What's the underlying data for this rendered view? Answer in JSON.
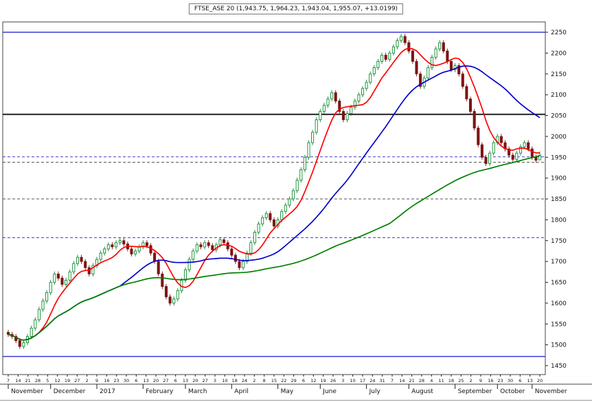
{
  "header": {
    "title": "FTSE_ASE 20 (1,943.75, 1,964.23, 1,943.04, 1,955.07, +13.0199)"
  },
  "chart_data": {
    "type": "candlestick",
    "title": "FTSE_ASE 20",
    "last_quote": {
      "open": 1943.75,
      "high": 1964.23,
      "low": 1943.04,
      "close": 1955.07,
      "change": 13.0199
    },
    "ylim": [
      1430,
      2278
    ],
    "grid": "off",
    "legend": "none",
    "y_ticks": [
      2250,
      2200,
      2150,
      2100,
      2050,
      2000,
      1950,
      1900,
      1850,
      1800,
      1750,
      1700,
      1650,
      1600,
      1550,
      1500,
      1450
    ],
    "colors": {
      "up": "#0e8a2f",
      "up_fill": "#ffffff",
      "down": "#7e1414",
      "axis": "#222222"
    },
    "moving_averages": [
      {
        "name": "fast",
        "color": "#ff0000",
        "window": 8
      },
      {
        "name": "medium",
        "color": "#0000cc",
        "window": 30
      },
      {
        "name": "slow",
        "color": "#008000",
        "window": 100
      }
    ],
    "level_lines": [
      {
        "price": 2250,
        "style": "solid",
        "color": "#3a3ad6",
        "width": 1.4
      },
      {
        "price": 2053,
        "style": "solid",
        "color": "#111111",
        "width": 1.8
      },
      {
        "price": 1951,
        "style": "dashed",
        "color": "#4444cc",
        "width": 1
      },
      {
        "price": 1938,
        "style": "dashed",
        "color": "#555555",
        "width": 1
      },
      {
        "price": 1850,
        "style": "dashed",
        "color": "#555555",
        "width": 1
      },
      {
        "price": 1757,
        "style": "dashed",
        "color": "#4444cc",
        "width": 1
      },
      {
        "price": 1472,
        "style": "solid",
        "color": "#3a3ad6",
        "width": 1.4
      }
    ],
    "candles": [
      [
        1530,
        1536,
        1519,
        1525
      ],
      [
        1525,
        1531,
        1514,
        1520
      ],
      [
        1520,
        1526,
        1504,
        1510
      ],
      [
        1510,
        1516,
        1490,
        1496
      ],
      [
        1496,
        1511,
        1490,
        1505
      ],
      [
        1505,
        1526,
        1499,
        1520
      ],
      [
        1520,
        1546,
        1514,
        1540
      ],
      [
        1540,
        1566,
        1534,
        1560
      ],
      [
        1560,
        1591,
        1554,
        1585
      ],
      [
        1585,
        1611,
        1579,
        1605
      ],
      [
        1605,
        1631,
        1599,
        1625
      ],
      [
        1625,
        1656,
        1619,
        1650
      ],
      [
        1650,
        1676,
        1644,
        1670
      ],
      [
        1670,
        1676,
        1654,
        1660
      ],
      [
        1660,
        1666,
        1639,
        1645
      ],
      [
        1645,
        1661,
        1639,
        1655
      ],
      [
        1655,
        1681,
        1649,
        1675
      ],
      [
        1675,
        1701,
        1669,
        1695
      ],
      [
        1695,
        1716,
        1689,
        1710
      ],
      [
        1710,
        1716,
        1694,
        1700
      ],
      [
        1700,
        1706,
        1679,
        1685
      ],
      [
        1685,
        1691,
        1664,
        1670
      ],
      [
        1670,
        1696,
        1664,
        1690
      ],
      [
        1690,
        1711,
        1684,
        1705
      ],
      [
        1705,
        1726,
        1699,
        1720
      ],
      [
        1720,
        1736,
        1714,
        1730
      ],
      [
        1730,
        1746,
        1724,
        1740
      ],
      [
        1740,
        1746,
        1729,
        1735
      ],
      [
        1735,
        1751,
        1729,
        1745
      ],
      [
        1745,
        1756,
        1739,
        1750
      ],
      [
        1750,
        1756,
        1736,
        1742
      ],
      [
        1742,
        1748,
        1724,
        1730
      ],
      [
        1730,
        1736,
        1712,
        1718
      ],
      [
        1718,
        1731,
        1712,
        1725
      ],
      [
        1725,
        1741,
        1719,
        1735
      ],
      [
        1735,
        1751,
        1729,
        1745
      ],
      [
        1745,
        1751,
        1732,
        1738
      ],
      [
        1738,
        1744,
        1714,
        1720
      ],
      [
        1720,
        1726,
        1694,
        1700
      ],
      [
        1700,
        1706,
        1664,
        1670
      ],
      [
        1670,
        1676,
        1634,
        1640
      ],
      [
        1640,
        1646,
        1609,
        1615
      ],
      [
        1615,
        1621,
        1594,
        1600
      ],
      [
        1600,
        1616,
        1594,
        1610
      ],
      [
        1610,
        1636,
        1604,
        1630
      ],
      [
        1630,
        1661,
        1624,
        1655
      ],
      [
        1655,
        1686,
        1649,
        1680
      ],
      [
        1680,
        1711,
        1674,
        1705
      ],
      [
        1705,
        1731,
        1699,
        1725
      ],
      [
        1725,
        1746,
        1719,
        1740
      ],
      [
        1740,
        1746,
        1729,
        1735
      ],
      [
        1735,
        1751,
        1729,
        1745
      ],
      [
        1745,
        1751,
        1732,
        1738
      ],
      [
        1738,
        1744,
        1722,
        1728
      ],
      [
        1728,
        1746,
        1722,
        1740
      ],
      [
        1740,
        1758,
        1734,
        1752
      ],
      [
        1752,
        1758,
        1739,
        1745
      ],
      [
        1745,
        1751,
        1724,
        1730
      ],
      [
        1730,
        1736,
        1709,
        1715
      ],
      [
        1715,
        1721,
        1694,
        1700
      ],
      [
        1700,
        1706,
        1679,
        1685
      ],
      [
        1685,
        1706,
        1679,
        1700
      ],
      [
        1700,
        1726,
        1694,
        1720
      ],
      [
        1720,
        1751,
        1714,
        1745
      ],
      [
        1745,
        1776,
        1739,
        1770
      ],
      [
        1770,
        1796,
        1764,
        1790
      ],
      [
        1790,
        1811,
        1784,
        1805
      ],
      [
        1805,
        1821,
        1799,
        1815
      ],
      [
        1815,
        1821,
        1794,
        1800
      ],
      [
        1800,
        1806,
        1779,
        1785
      ],
      [
        1785,
        1806,
        1779,
        1800
      ],
      [
        1800,
        1826,
        1794,
        1820
      ],
      [
        1820,
        1841,
        1814,
        1835
      ],
      [
        1835,
        1856,
        1829,
        1850
      ],
      [
        1850,
        1876,
        1844,
        1870
      ],
      [
        1870,
        1901,
        1864,
        1895
      ],
      [
        1895,
        1926,
        1889,
        1920
      ],
      [
        1920,
        1956,
        1914,
        1950
      ],
      [
        1950,
        1991,
        1944,
        1985
      ],
      [
        1985,
        2016,
        1979,
        2010
      ],
      [
        2010,
        2046,
        2004,
        2040
      ],
      [
        2040,
        2066,
        2034,
        2060
      ],
      [
        2060,
        2081,
        2054,
        2075
      ],
      [
        2075,
        2096,
        2069,
        2090
      ],
      [
        2090,
        2111,
        2084,
        2105
      ],
      [
        2105,
        2111,
        2079,
        2085
      ],
      [
        2085,
        2091,
        2054,
        2060
      ],
      [
        2060,
        2066,
        2034,
        2040
      ],
      [
        2040,
        2061,
        2034,
        2055
      ],
      [
        2055,
        2076,
        2049,
        2070
      ],
      [
        2070,
        2091,
        2064,
        2085
      ],
      [
        2085,
        2106,
        2079,
        2100
      ],
      [
        2100,
        2121,
        2094,
        2115
      ],
      [
        2115,
        2136,
        2109,
        2130
      ],
      [
        2130,
        2156,
        2124,
        2150
      ],
      [
        2150,
        2171,
        2144,
        2165
      ],
      [
        2165,
        2186,
        2159,
        2180
      ],
      [
        2180,
        2201,
        2174,
        2195
      ],
      [
        2195,
        2201,
        2179,
        2185
      ],
      [
        2185,
        2206,
        2179,
        2200
      ],
      [
        2200,
        2221,
        2194,
        2215
      ],
      [
        2215,
        2236,
        2209,
        2230
      ],
      [
        2230,
        2246,
        2224,
        2240
      ],
      [
        2240,
        2246,
        2219,
        2225
      ],
      [
        2225,
        2231,
        2199,
        2205
      ],
      [
        2205,
        2211,
        2174,
        2180
      ],
      [
        2180,
        2186,
        2144,
        2150
      ],
      [
        2150,
        2156,
        2114,
        2120
      ],
      [
        2120,
        2146,
        2114,
        2140
      ],
      [
        2140,
        2171,
        2134,
        2165
      ],
      [
        2165,
        2196,
        2159,
        2190
      ],
      [
        2190,
        2216,
        2184,
        2210
      ],
      [
        2210,
        2231,
        2204,
        2225
      ],
      [
        2225,
        2231,
        2199,
        2205
      ],
      [
        2205,
        2211,
        2174,
        2180
      ],
      [
        2180,
        2186,
        2154,
        2160
      ],
      [
        2160,
        2176,
        2154,
        2170
      ],
      [
        2170,
        2176,
        2144,
        2150
      ],
      [
        2150,
        2156,
        2114,
        2120
      ],
      [
        2120,
        2126,
        2084,
        2090
      ],
      [
        2090,
        2096,
        2054,
        2060
      ],
      [
        2060,
        2066,
        2014,
        2020
      ],
      [
        2020,
        2026,
        1974,
        1980
      ],
      [
        1980,
        1986,
        1944,
        1950
      ],
      [
        1950,
        1956,
        1929,
        1935
      ],
      [
        1935,
        1966,
        1929,
        1960
      ],
      [
        1960,
        1991,
        1954,
        1985
      ],
      [
        1985,
        2006,
        1979,
        2000
      ],
      [
        2000,
        2006,
        1979,
        1985
      ],
      [
        1985,
        1991,
        1964,
        1970
      ],
      [
        1970,
        1976,
        1949,
        1955
      ],
      [
        1955,
        1961,
        1939,
        1945
      ],
      [
        1945,
        1966,
        1939,
        1960
      ],
      [
        1960,
        1981,
        1954,
        1975
      ],
      [
        1975,
        1991,
        1969,
        1985
      ],
      [
        1985,
        1991,
        1964,
        1970
      ],
      [
        1970,
        1976,
        1944,
        1950
      ],
      [
        1950,
        1956,
        1937,
        1943
      ],
      [
        1943.75,
        1964.23,
        1943.04,
        1955.07
      ]
    ],
    "x_axis": {
      "day_labels": [
        "7",
        "14",
        "21",
        "28",
        "5",
        "12",
        "19",
        "27",
        "2",
        "9",
        "16",
        "23",
        "30",
        "6",
        "13",
        "20",
        "27",
        "6",
        "13",
        "20",
        "27",
        "3",
        "10",
        "18",
        "24",
        "2",
        "8",
        "15",
        "22",
        "29",
        "6",
        "12",
        "19",
        "26",
        "3",
        "10",
        "17",
        "24",
        "31",
        "7",
        "14",
        "21",
        "28",
        "4",
        "11",
        "18",
        "25",
        "2",
        "9",
        "16",
        "23",
        "30",
        "6",
        "13",
        "20"
      ],
      "months": [
        {
          "label": "November",
          "index": 0
        },
        {
          "label": "December",
          "index": 11
        },
        {
          "label": "2017",
          "index": 23
        },
        {
          "label": "February",
          "index": 35
        },
        {
          "label": "March",
          "index": 46
        },
        {
          "label": "April",
          "index": 58
        },
        {
          "label": "May",
          "index": 70
        },
        {
          "label": "June",
          "index": 81
        },
        {
          "label": "July",
          "index": 93
        },
        {
          "label": "August",
          "index": 104
        },
        {
          "label": "September",
          "index": 116
        },
        {
          "label": "October",
          "index": 127
        },
        {
          "label": "November",
          "index": 136
        }
      ]
    }
  }
}
